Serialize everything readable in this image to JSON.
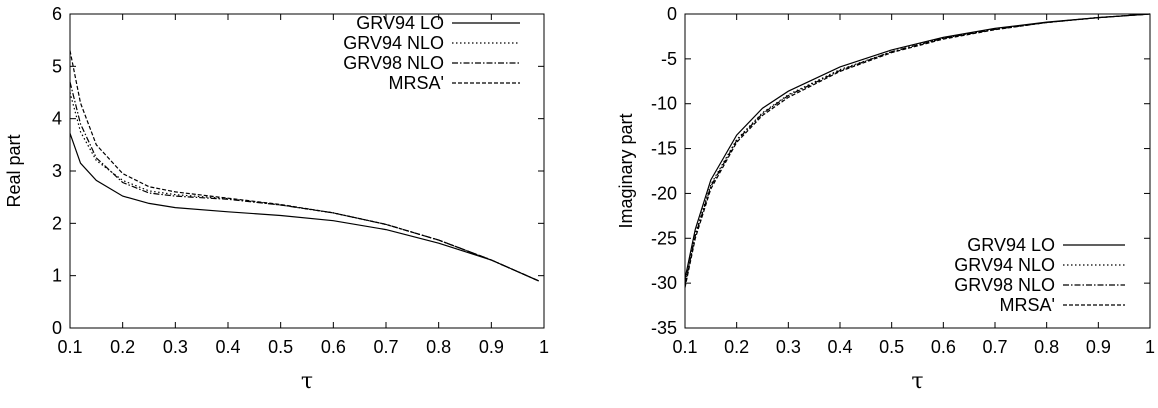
{
  "chart_data": [
    {
      "type": "line",
      "title": "",
      "xlabel": "τ",
      "ylabel": "Real part",
      "xlim": [
        0.1,
        1
      ],
      "ylim": [
        0,
        6
      ],
      "xticks": [
        "0.1",
        "0.2",
        "0.3",
        "0.4",
        "0.5",
        "0.6",
        "0.7",
        "0.8",
        "0.9",
        "1"
      ],
      "yticks": [
        "0",
        "1",
        "2",
        "3",
        "4",
        "5",
        "6"
      ],
      "grid": false,
      "legend_position": "top-right",
      "series": [
        {
          "name": "GRV94 LO",
          "dash": "solid",
          "x": [
            0.1,
            0.12,
            0.15,
            0.2,
            0.25,
            0.3,
            0.4,
            0.5,
            0.6,
            0.7,
            0.8,
            0.9,
            0.99
          ],
          "y": [
            3.72,
            3.15,
            2.82,
            2.52,
            2.38,
            2.3,
            2.22,
            2.15,
            2.05,
            1.88,
            1.62,
            1.3,
            0.9
          ]
        },
        {
          "name": "GRV94 NLO",
          "dash": "1.5,2.5",
          "x": [
            0.1,
            0.12,
            0.15,
            0.2,
            0.25,
            0.3,
            0.4,
            0.5,
            0.6,
            0.7,
            0.8,
            0.9,
            0.99
          ],
          "y": [
            4.5,
            3.75,
            3.2,
            2.82,
            2.62,
            2.55,
            2.47,
            2.35,
            2.2,
            1.98,
            1.68,
            1.3,
            0.9
          ]
        },
        {
          "name": "GRV98 NLO",
          "dash": "6,2,1.5,2",
          "x": [
            0.1,
            0.12,
            0.15,
            0.2,
            0.25,
            0.3,
            0.4,
            0.5,
            0.6,
            0.7,
            0.8,
            0.9,
            0.99
          ],
          "y": [
            4.7,
            3.9,
            3.25,
            2.78,
            2.58,
            2.52,
            2.46,
            2.35,
            2.2,
            1.98,
            1.68,
            1.3,
            0.9
          ]
        },
        {
          "name": "MRSA'",
          "dash": "4,2",
          "x": [
            0.1,
            0.12,
            0.15,
            0.2,
            0.25,
            0.3,
            0.4,
            0.5,
            0.6,
            0.7,
            0.8,
            0.9,
            0.99
          ],
          "y": [
            5.3,
            4.3,
            3.5,
            2.95,
            2.7,
            2.6,
            2.48,
            2.36,
            2.2,
            1.98,
            1.68,
            1.3,
            0.9
          ]
        }
      ]
    },
    {
      "type": "line",
      "title": "",
      "xlabel": "τ",
      "ylabel": "Imaginary part",
      "xlim": [
        0.1,
        1
      ],
      "ylim": [
        -35,
        0
      ],
      "xticks": [
        "0.1",
        "0.2",
        "0.3",
        "0.4",
        "0.5",
        "0.6",
        "0.7",
        "0.8",
        "0.9",
        "1"
      ],
      "yticks": [
        "-35",
        "-30",
        "-25",
        "-20",
        "-15",
        "-10",
        "-5",
        "0"
      ],
      "grid": false,
      "legend_position": "bottom-right",
      "series": [
        {
          "name": "GRV94 LO",
          "dash": "solid",
          "x": [
            0.1,
            0.12,
            0.15,
            0.2,
            0.25,
            0.3,
            0.4,
            0.5,
            0.6,
            0.7,
            0.8,
            0.9,
            1.0
          ],
          "y": [
            -29.5,
            -24.0,
            -18.5,
            -13.5,
            -10.5,
            -8.6,
            -5.9,
            -4.0,
            -2.6,
            -1.6,
            -0.9,
            -0.4,
            0.0
          ]
        },
        {
          "name": "GRV94 NLO",
          "dash": "1.5,2.5",
          "x": [
            0.1,
            0.12,
            0.15,
            0.2,
            0.25,
            0.3,
            0.4,
            0.5,
            0.6,
            0.7,
            0.8,
            0.9,
            1.0
          ],
          "y": [
            -30.0,
            -24.5,
            -19.0,
            -14.0,
            -11.0,
            -9.0,
            -6.2,
            -4.2,
            -2.7,
            -1.7,
            -0.95,
            -0.4,
            0.0
          ]
        },
        {
          "name": "GRV98 NLO",
          "dash": "6,2,1.5,2",
          "x": [
            0.1,
            0.12,
            0.15,
            0.2,
            0.25,
            0.3,
            0.4,
            0.5,
            0.6,
            0.7,
            0.8,
            0.9,
            1.0
          ],
          "y": [
            -30.2,
            -24.7,
            -19.2,
            -14.1,
            -11.1,
            -9.1,
            -6.3,
            -4.2,
            -2.7,
            -1.7,
            -0.95,
            -0.4,
            0.0
          ]
        },
        {
          "name": "MRSA'",
          "dash": "4,2",
          "x": [
            0.1,
            0.12,
            0.15,
            0.2,
            0.25,
            0.3,
            0.4,
            0.5,
            0.6,
            0.7,
            0.8,
            0.9,
            1.0
          ],
          "y": [
            -30.5,
            -25.0,
            -19.5,
            -14.3,
            -11.3,
            -9.3,
            -6.4,
            -4.3,
            -2.8,
            -1.75,
            -0.95,
            -0.4,
            0.0
          ]
        }
      ]
    }
  ]
}
